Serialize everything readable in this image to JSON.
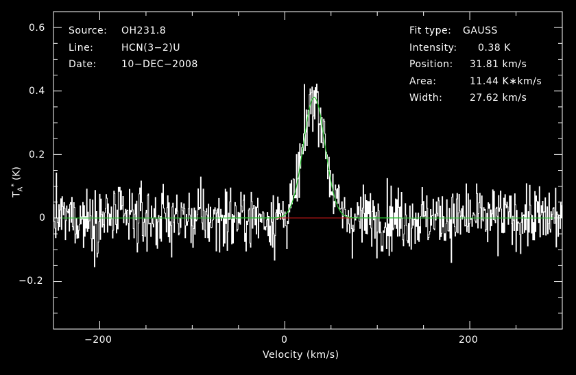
{
  "chart_data": {
    "type": "line",
    "xlabel": "Velocity (km/s)",
    "ylabel_main": "T",
    "ylabel_sup": "*",
    "ylabel_sub": "A",
    "ylabel_unit": "(K)",
    "xlim": [
      -250,
      300
    ],
    "ylim": [
      -0.35,
      0.65
    ],
    "xticks": [
      -200,
      0,
      200
    ],
    "xtick_labels": [
      "−200",
      "0",
      "200"
    ],
    "yticks": [
      -0.2,
      0,
      0.2,
      0.4,
      0.6
    ],
    "ytick_labels": [
      "−0.2",
      "0",
      "0.2",
      "0.4",
      "0.6"
    ],
    "grid": false,
    "series": [
      {
        "role": "spectrum",
        "style": "histogram",
        "color": "#ffffff",
        "noise_rms": 0.1,
        "x_range": [
          -250,
          300
        ]
      },
      {
        "role": "gaussian-fit",
        "color": "#22c22a",
        "amplitude": 0.38,
        "center": 31.81,
        "fwhm": 27.62
      },
      {
        "role": "fit-baseline-window",
        "color": "#c01818",
        "x_range": [
          -10,
          75
        ],
        "y": 0
      }
    ]
  },
  "header_left": {
    "source_label": "Source:",
    "source_value": "OH231.8",
    "line_label": "Line:",
    "line_value": "HCN(3−2)U",
    "date_label": "Date:",
    "date_value": "10−DEC−2008"
  },
  "header_right": {
    "fit_type_label": "Fit type:",
    "fit_type_value": "GAUSS",
    "intensity_label": "Intensity:",
    "intensity_value": "0.38 K",
    "position_label": "Position:",
    "position_value": "31.81 km/s",
    "area_label": "Area:",
    "area_value": "11.44 K∗km/s",
    "width_label": "Width:",
    "width_value": "27.62 km/s"
  }
}
